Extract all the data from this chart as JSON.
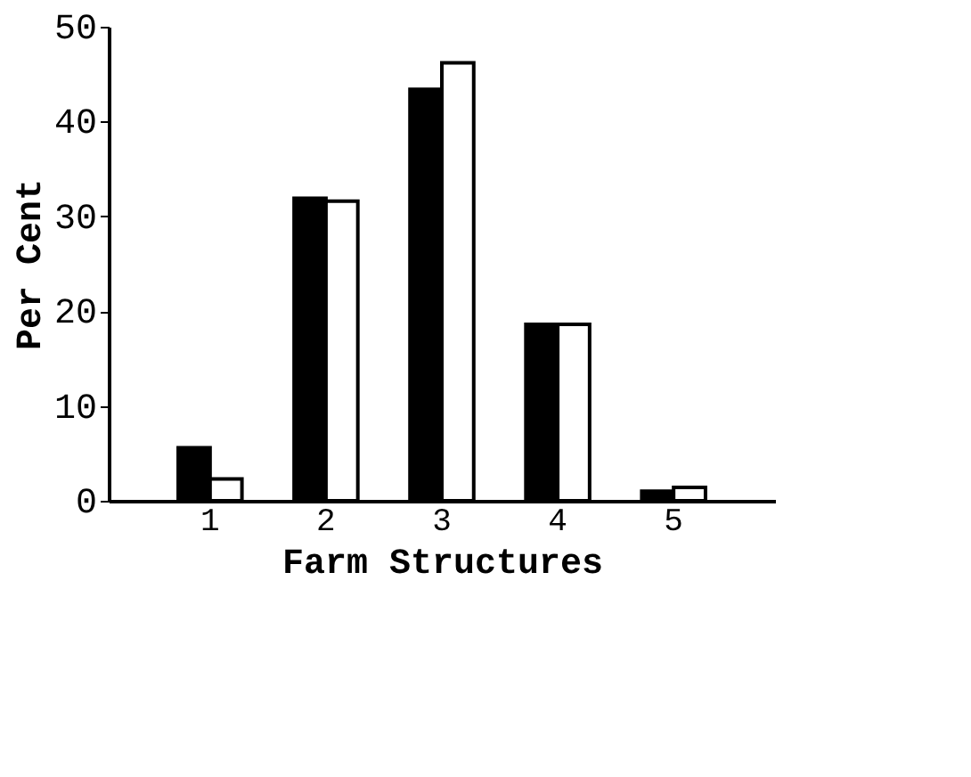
{
  "chart_data": {
    "type": "bar",
    "xlabel": "Farm Structures",
    "ylabel": "Per Cent",
    "categories": [
      "1",
      "2",
      "3",
      "4",
      "5"
    ],
    "series": [
      {
        "color": "#000000",
        "values": [
          5.6,
          31.9,
          43.4,
          18.6,
          1.0
        ]
      },
      {
        "color": "#ffffff",
        "values": [
          2.3,
          31.6,
          46.2,
          18.6,
          1.4
        ]
      }
    ],
    "ylim": [
      0,
      50
    ],
    "yticks": [
      0,
      10,
      20,
      30,
      40,
      50
    ],
    "grid": false
  }
}
